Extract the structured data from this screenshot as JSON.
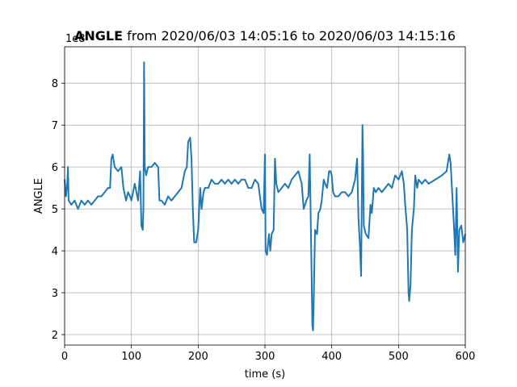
{
  "chart_data": {
    "type": "line",
    "title": [
      "ANGLE",
      " from 2020/06/03 14:05:16 to 2020/06/03 14:15:16"
    ],
    "x_label": "time (s)",
    "y_label": "ANGLE",
    "y_offset_label": "1e8",
    "xlim": [
      0,
      600
    ],
    "xticks": [
      0,
      100,
      200,
      300,
      400,
      500,
      600
    ],
    "ylim": [
      1.75,
      8.87
    ],
    "yticks": [
      2,
      3,
      4,
      5,
      6,
      7,
      8
    ],
    "grid": true,
    "series": [
      {
        "name": "ANGLE",
        "color": "#1f77b4",
        "x": [
          0,
          2,
          4,
          5,
          6,
          10,
          15,
          20,
          25,
          30,
          35,
          40,
          45,
          50,
          55,
          60,
          65,
          68,
          70,
          72,
          75,
          80,
          85,
          88,
          92,
          95,
          98,
          100,
          105,
          110,
          113,
          115,
          117,
          118,
          119,
          120,
          122,
          125,
          130,
          135,
          140,
          142,
          145,
          150,
          155,
          160,
          165,
          170,
          175,
          180,
          183,
          185,
          188,
          190,
          192,
          194,
          197,
          200,
          203,
          205,
          208,
          210,
          215,
          220,
          225,
          230,
          235,
          240,
          245,
          250,
          255,
          260,
          265,
          270,
          275,
          280,
          285,
          290,
          295,
          298,
          300,
          301,
          303,
          306,
          308,
          310,
          313,
          315,
          317,
          320,
          325,
          330,
          335,
          340,
          345,
          350,
          355,
          358,
          362,
          365,
          367,
          370,
          371,
          372,
          373,
          375,
          378,
          380,
          383,
          385,
          388,
          390,
          393,
          396,
          398,
          400,
          402,
          405,
          410,
          415,
          420,
          425,
          430,
          435,
          438,
          440,
          442,
          444,
          446,
          447,
          448,
          451,
          455,
          458,
          460,
          463,
          466,
          470,
          475,
          480,
          485,
          490,
          495,
          500,
          505,
          508,
          510,
          513,
          515,
          516,
          518,
          520,
          523,
          525,
          528,
          530,
          535,
          540,
          545,
          555,
          565,
          572,
          576,
          578,
          580,
          583,
          585,
          587,
          589,
          591,
          594,
          597,
          600
        ],
        "values": [
          5.7,
          5.3,
          5.6,
          6.0,
          5.2,
          5.1,
          5.2,
          5.0,
          5.2,
          5.1,
          5.2,
          5.1,
          5.2,
          5.3,
          5.3,
          5.4,
          5.5,
          5.5,
          6.2,
          6.3,
          6.0,
          5.9,
          6.0,
          5.5,
          5.2,
          5.4,
          5.3,
          5.2,
          5.6,
          5.2,
          5.9,
          4.6,
          4.5,
          5.0,
          8.5,
          6.0,
          5.8,
          6.0,
          6.0,
          6.1,
          6.0,
          5.2,
          5.2,
          5.1,
          5.3,
          5.2,
          5.3,
          5.4,
          5.5,
          5.9,
          6.0,
          6.6,
          6.7,
          6.2,
          5.0,
          4.2,
          4.2,
          4.5,
          5.5,
          5.0,
          5.4,
          5.5,
          5.5,
          5.7,
          5.6,
          5.6,
          5.7,
          5.6,
          5.7,
          5.6,
          5.7,
          5.6,
          5.7,
          5.7,
          5.5,
          5.5,
          5.7,
          5.6,
          5.0,
          4.9,
          6.3,
          4.0,
          3.9,
          4.4,
          4.0,
          4.4,
          4.5,
          6.2,
          5.6,
          5.4,
          5.5,
          5.6,
          5.5,
          5.7,
          5.8,
          5.9,
          5.6,
          5.0,
          5.2,
          5.3,
          6.3,
          3.3,
          2.2,
          2.1,
          2.8,
          4.5,
          4.4,
          4.9,
          5.0,
          5.2,
          5.7,
          5.6,
          5.5,
          5.9,
          5.9,
          5.8,
          5.4,
          5.3,
          5.3,
          5.4,
          5.4,
          5.3,
          5.4,
          5.7,
          6.2,
          4.8,
          4.2,
          3.4,
          7.0,
          6.2,
          4.6,
          4.4,
          4.3,
          5.1,
          4.9,
          5.5,
          5.4,
          5.5,
          5.4,
          5.5,
          5.6,
          5.5,
          5.8,
          5.7,
          5.9,
          5.6,
          5.1,
          4.5,
          3.0,
          2.8,
          3.2,
          4.5,
          5.0,
          5.8,
          5.5,
          5.7,
          5.6,
          5.7,
          5.6,
          5.7,
          5.8,
          5.9,
          6.3,
          6.1,
          5.5,
          4.6,
          3.9,
          5.5,
          3.5,
          4.5,
          4.6,
          4.2,
          4.4
        ]
      }
    ]
  }
}
